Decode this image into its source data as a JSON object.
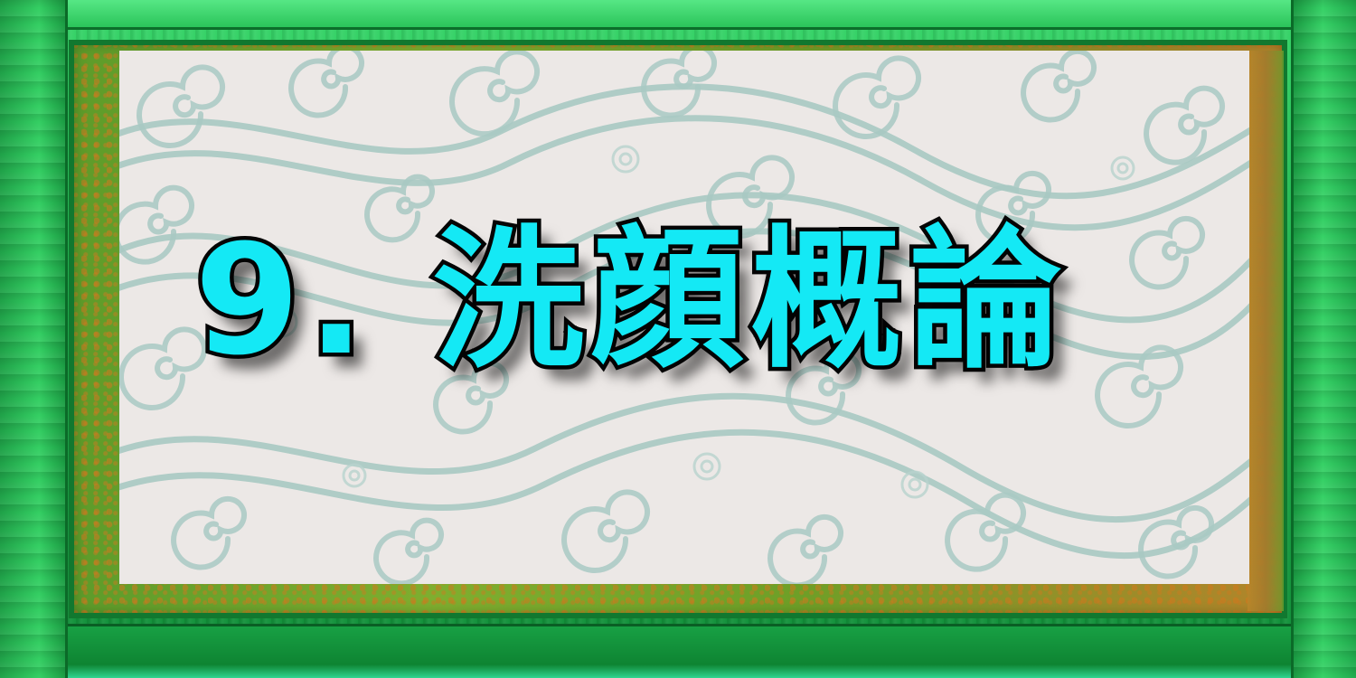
{
  "title": "9. 洗顔概論",
  "colors": {
    "frame_green": "#22b14c",
    "paper": "#ece8e6",
    "swirl": "#9fc3bd",
    "title_fill": "#14e9f5",
    "title_outline": "#050505"
  }
}
